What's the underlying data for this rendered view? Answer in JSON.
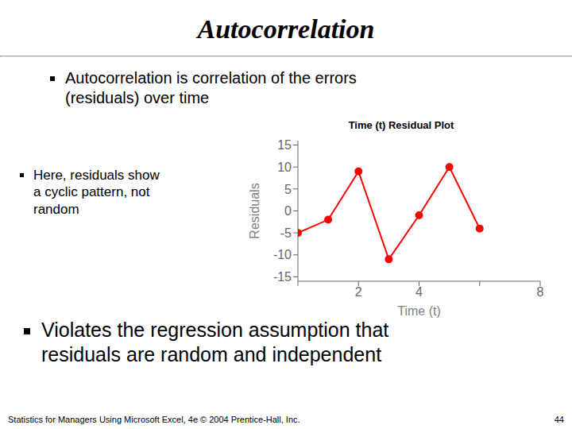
{
  "title": "Autocorrelation",
  "bullets": [
    [
      "Autocorrelation is correlation of the errors",
      "(residuals) over time"
    ],
    [
      "Here, residuals show",
      "a cyclic pattern, not",
      "random"
    ],
    [
      "Violates the regression assumption that",
      "residuals are random and independent"
    ]
  ],
  "footer": "Statistics for Managers Using Microsoft Excel, 4e © 2004 Prentice-Hall, Inc.",
  "page_number": "44",
  "chart_data": {
    "type": "line",
    "title": "Time (t)  Residual Plot",
    "x_label": "Time (t)",
    "y_label": "Residuals",
    "x": [
      0,
      1,
      2,
      3,
      4,
      5,
      6
    ],
    "values": [
      -5,
      -2,
      9,
      -11,
      -1,
      10,
      -4
    ],
    "color": "#FF0000",
    "marker": "circle",
    "xlim": [
      0,
      8
    ],
    "ylim": [
      -16,
      16
    ],
    "xticks": [
      {
        "value": 0,
        "label": null
      },
      2,
      4,
      {
        "value": 6,
        "label": null
      },
      8
    ],
    "yticks": [
      -15,
      -10,
      -5,
      0,
      5,
      10,
      15
    ],
    "grid": false
  }
}
